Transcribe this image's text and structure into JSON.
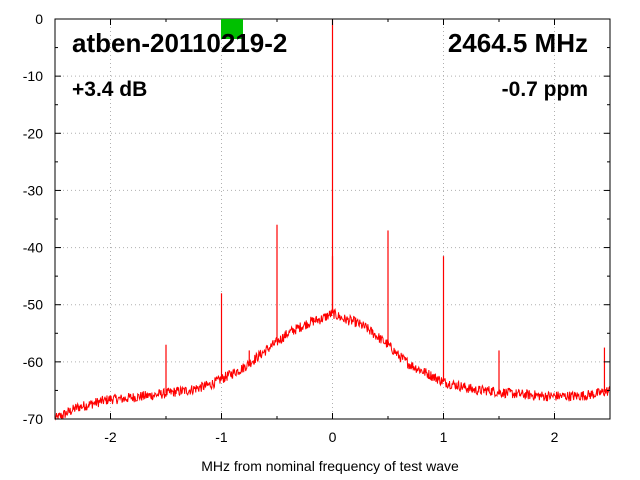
{
  "chart_data": {
    "type": "line",
    "title": "",
    "xlabel": "MHz from nominal frequency of test wave",
    "ylabel": "",
    "xlim": [
      -2.5,
      2.5
    ],
    "ylim": [
      -70,
      0
    ],
    "x_ticks": [
      -2,
      -1,
      0,
      1,
      2
    ],
    "x_tick_labels": [
      "-2",
      "-1",
      "0",
      "1",
      "2"
    ],
    "y_ticks": [
      0,
      -10,
      -20,
      -30,
      -40,
      -50,
      -60,
      -70
    ],
    "y_tick_labels": [
      "0",
      "-10",
      "-20",
      "-30",
      "-40",
      "-50",
      "-60",
      "-70"
    ],
    "grid": true,
    "annotations": {
      "device": "atben-20110219-2",
      "frequency": "2464.5 MHz",
      "gain": "+3.4 dB",
      "offset": "-0.7 ppm"
    },
    "status_indicator_color": "#00c000",
    "series": [
      {
        "color": "#ff0000",
        "x": [
          -2.5,
          -2.4,
          -2.3,
          -2.2,
          -2.1,
          -2.0,
          -1.9,
          -1.8,
          -1.7,
          -1.6,
          -1.5,
          -1.4,
          -1.3,
          -1.2,
          -1.1,
          -1.0,
          -0.9,
          -0.8,
          -0.7,
          -0.6,
          -0.5,
          -0.4,
          -0.3,
          -0.2,
          -0.1,
          -0.05,
          0.0,
          0.05,
          0.1,
          0.2,
          0.3,
          0.4,
          0.5,
          0.6,
          0.7,
          0.8,
          0.9,
          1.0,
          1.1,
          1.2,
          1.3,
          1.4,
          1.5,
          1.6,
          1.7,
          1.8,
          1.9,
          2.0,
          2.1,
          2.2,
          2.3,
          2.4,
          2.5
        ],
        "y": [
          -70,
          -69,
          -68,
          -67.5,
          -67,
          -66.5,
          -66.5,
          -66.2,
          -66,
          -65.8,
          -65.5,
          -65.2,
          -65,
          -64.5,
          -64,
          -63,
          -62,
          -61,
          -59.5,
          -58,
          -56.5,
          -55,
          -54,
          -53,
          -52.5,
          -52,
          -51.5,
          -52,
          -52.5,
          -53,
          -54,
          -55.5,
          -57,
          -59,
          -60.5,
          -61.5,
          -62.5,
          -63.5,
          -64,
          -64.5,
          -65,
          -65,
          -65.3,
          -65.5,
          -65.7,
          -65.8,
          -66,
          -66,
          -66,
          -66,
          -65.8,
          -65.5,
          -65
        ]
      }
    ],
    "spurs": [
      {
        "x": 0.0,
        "y": 0
      },
      {
        "x": 0.0,
        "y": -41.5
      },
      {
        "x": -0.5,
        "y": -36
      },
      {
        "x": 0.5,
        "y": -37
      },
      {
        "x": -1.0,
        "y": -48
      },
      {
        "x": 1.0,
        "y": -41.5
      },
      {
        "x": -1.5,
        "y": -57
      },
      {
        "x": 1.5,
        "y": -58
      },
      {
        "x": -0.75,
        "y": -58
      },
      {
        "x": 2.45,
        "y": -57.5
      }
    ]
  }
}
